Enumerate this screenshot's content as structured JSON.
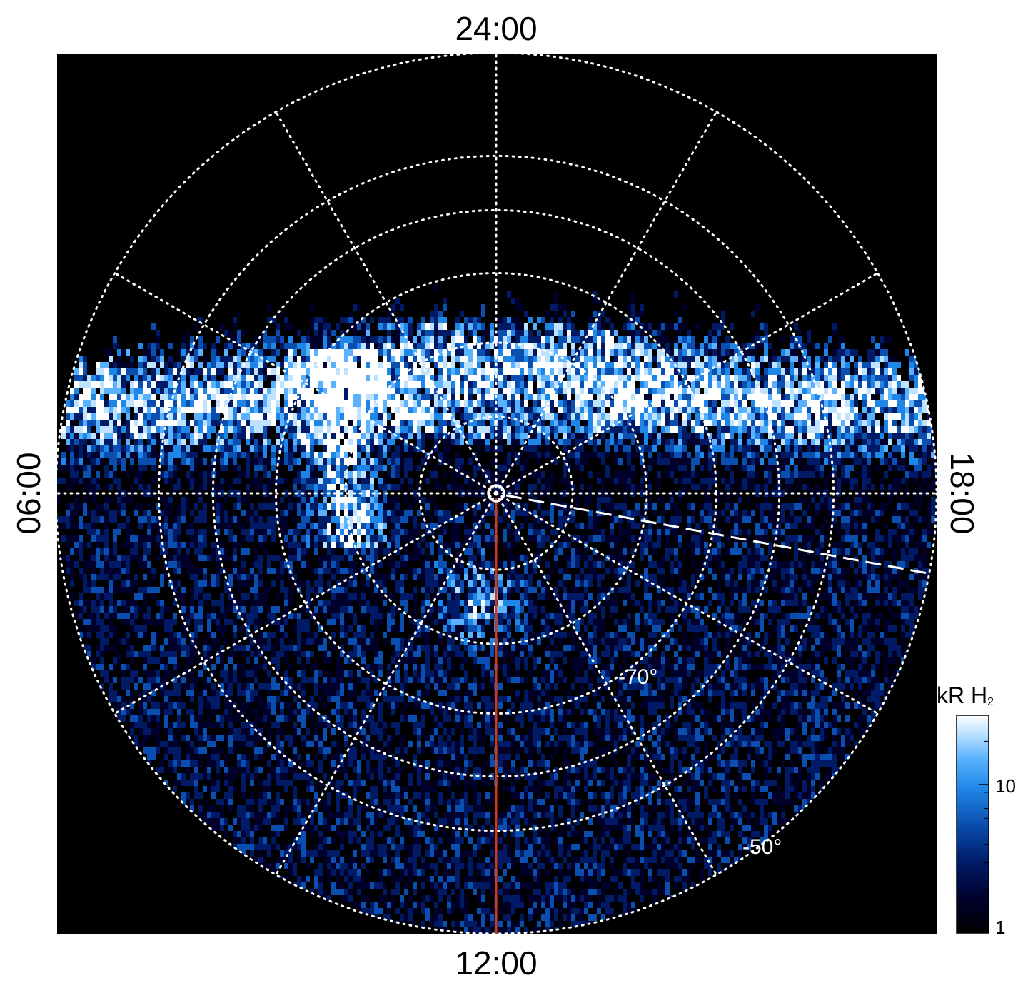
{
  "chart_data": {
    "type": "heatmap",
    "projection": "polar-orthographic",
    "hemisphere": "south",
    "local_time_labels": {
      "top": "24:00",
      "bottom": "12:00",
      "left": "06:00",
      "right": "18:00"
    },
    "latitude_labels": [
      {
        "label": "-70°",
        "latitude": -70
      },
      {
        "label": "-50°",
        "latitude": -50
      }
    ],
    "grid": {
      "latitude_circles_deg": [
        -80,
        -70,
        -60,
        -50,
        -40
      ],
      "local_time_meridians_h": [
        0,
        2,
        4,
        6,
        8,
        10,
        12,
        14,
        16,
        18,
        20,
        22
      ],
      "style": "dotted",
      "color": "#ffffff"
    },
    "pole_marker": "circle",
    "highlighted_meridian": {
      "local_time_h": 12,
      "color": "#d03a1a"
    },
    "dashed_meridian": {
      "local_time_h": 17.3,
      "color": "#ffffff"
    },
    "colorbar": {
      "title": "kR H",
      "title_subscript": "2",
      "scale": "log",
      "range": [
        1,
        30
      ],
      "tick_labels": [
        "1",
        "10"
      ],
      "tick_values": [
        1,
        10
      ]
    },
    "colormap": [
      "#000000",
      "#00002a",
      "#001a66",
      "#0a4fb0",
      "#1e86e6",
      "#5ab2ff",
      "#bfe3ff",
      "#ffffff"
    ],
    "background": "#000000",
    "emission_features": [
      {
        "name": "main oval",
        "description": "bright band spanning dawn to dusk on nightside"
      },
      {
        "name": "dawn arc",
        "description": "bright arc toward noon from dawn sector"
      }
    ]
  }
}
